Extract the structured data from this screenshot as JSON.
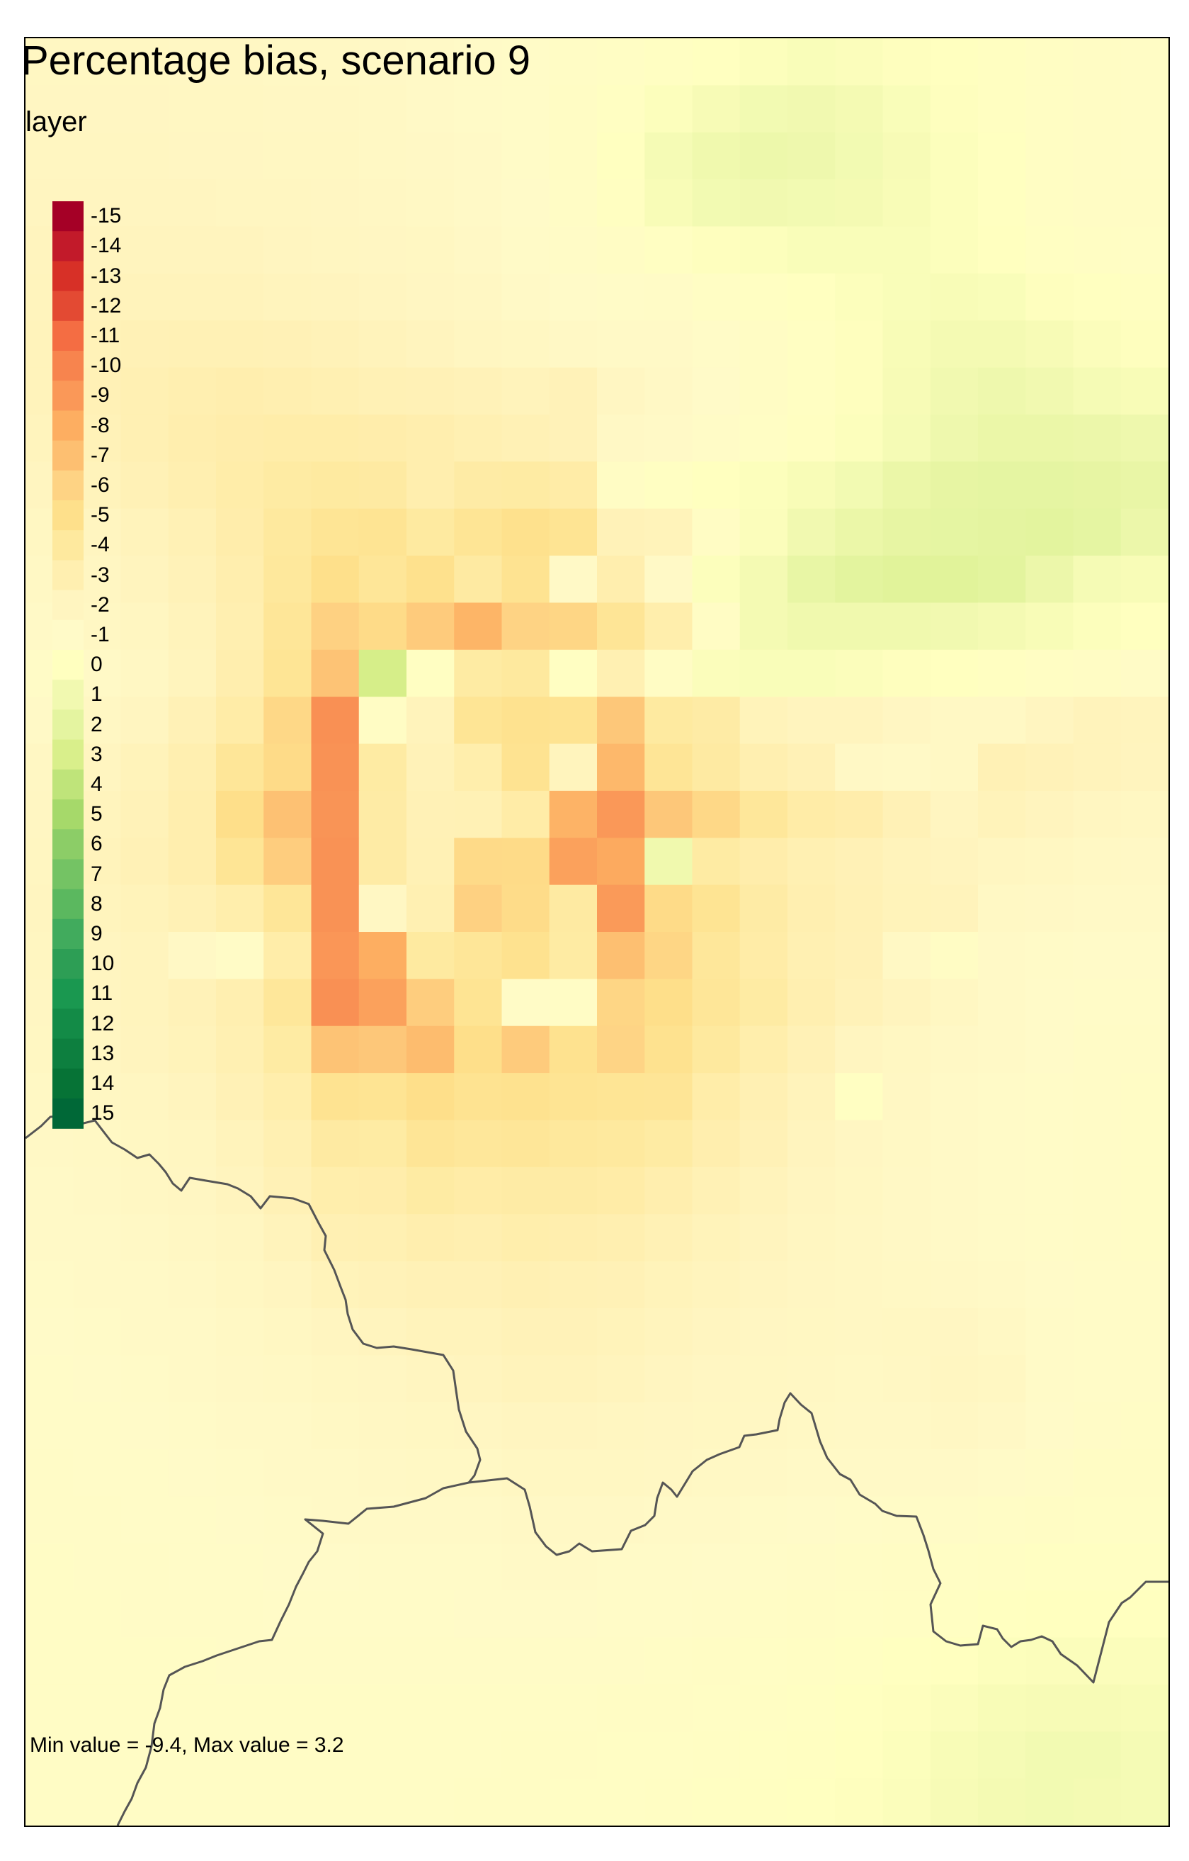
{
  "title": "Percentage bias, scenario 9",
  "legend": {
    "title": "layer",
    "labels": [
      "-15",
      "-14",
      "-13",
      "-12",
      "-11",
      "-10",
      "-9",
      "-8",
      "-7",
      "-6",
      "-5",
      "-4",
      "-3",
      "-2",
      "-1",
      "0",
      "1",
      "2",
      "3",
      "4",
      "5",
      "6",
      "7",
      "8",
      "9",
      "10",
      "11",
      "12",
      "13",
      "14",
      "15"
    ],
    "colors": [
      "#a50026",
      "#c21a2a",
      "#d73027",
      "#e34a33",
      "#f46d43",
      "#f7844e",
      "#fa9858",
      "#fdae61",
      "#fdbf71",
      "#fed384",
      "#fee08b",
      "#fee99e",
      "#ffefb0",
      "#fff5c0",
      "#fffac8",
      "#ffffbf",
      "#f1f9b0",
      "#e4f4a0",
      "#d9ef8b",
      "#bfe47a",
      "#a6d96a",
      "#8ccd67",
      "#74c364",
      "#5bb85f",
      "#41ab5d",
      "#2d9e55",
      "#1a9850",
      "#138b47",
      "#0d7f3f",
      "#067336",
      "#006837"
    ]
  },
  "caption": "Min value = -9.4, Max value = 3.2",
  "raster": {
    "cols": 24,
    "rows": 38,
    "min": -9.4,
    "max": 3.2,
    "values": [
      [
        -1.7,
        -1.7,
        -1.7,
        -1.6,
        -1.6,
        -1.5,
        -1.5,
        -1.4,
        -1.3,
        -1.1,
        -0.9,
        -0.7,
        -0.5,
        -0.3,
        -0.1,
        0.2,
        0.4,
        0.3,
        0.1,
        0.0,
        -0.2,
        -0.4,
        -0.6,
        -0.7
      ],
      [
        -1.8,
        -1.8,
        -1.8,
        -1.7,
        -1.7,
        -1.6,
        -1.6,
        -1.5,
        -1.3,
        -1.1,
        -0.9,
        -0.6,
        -0.3,
        0.2,
        0.6,
        0.9,
        1.0,
        0.8,
        0.4,
        0.1,
        -0.2,
        -0.4,
        -0.6,
        -0.7
      ],
      [
        -1.9,
        -1.9,
        -1.9,
        -1.8,
        -1.8,
        -1.7,
        -1.7,
        -1.5,
        -1.4,
        -1.2,
        -0.9,
        -0.6,
        -0.1,
        0.7,
        1.1,
        1.3,
        1.2,
        0.9,
        0.6,
        0.2,
        -0.1,
        -0.4,
        -0.6,
        -0.7
      ],
      [
        -2.0,
        -2.0,
        -2.0,
        -2.0,
        -1.9,
        -1.9,
        -1.8,
        -1.6,
        -1.5,
        -1.3,
        -1.0,
        -0.7,
        -0.2,
        0.5,
        0.9,
        1.0,
        0.9,
        0.8,
        0.5,
        0.2,
        -0.1,
        -0.4,
        -0.6,
        -0.6
      ],
      [
        -2.1,
        -2.1,
        -2.1,
        -2.1,
        -2.1,
        -2.0,
        -1.9,
        -1.8,
        -1.7,
        -1.4,
        -1.1,
        -0.8,
        -0.6,
        -0.3,
        0.1,
        0.2,
        0.4,
        0.4,
        0.4,
        0.2,
        0.0,
        -0.3,
        -0.4,
        -0.5
      ],
      [
        -2.2,
        -2.3,
        -2.3,
        -2.3,
        -2.3,
        -2.2,
        -2.1,
        -2.0,
        -1.8,
        -1.6,
        -1.3,
        -1.0,
        -0.9,
        -0.8,
        -0.5,
        -0.3,
        -0.1,
        0.2,
        0.4,
        0.5,
        0.4,
        0.1,
        -0.1,
        -0.2
      ],
      [
        -2.3,
        -2.5,
        -2.6,
        -2.7,
        -2.7,
        -2.6,
        -2.5,
        -2.3,
        -2.1,
        -1.9,
        -1.7,
        -1.4,
        -1.3,
        -1.2,
        -0.9,
        -0.6,
        -0.3,
        0.1,
        0.5,
        0.8,
        0.8,
        0.6,
        0.3,
        0.1
      ],
      [
        -2.3,
        -2.6,
        -2.8,
        -3.0,
        -3.1,
        -3.0,
        -2.9,
        -2.7,
        -2.6,
        -2.5,
        -2.3,
        -2.5,
        -1.8,
        -1.4,
        -1.0,
        -0.6,
        -0.3,
        0.1,
        0.6,
        1.0,
        1.2,
        1.0,
        0.7,
        0.5
      ],
      [
        -2.2,
        -2.5,
        -2.8,
        -3.1,
        -3.3,
        -3.4,
        -3.4,
        -3.3,
        -3.1,
        -2.9,
        -2.7,
        -2.5,
        -1.4,
        -1.2,
        -0.8,
        -0.5,
        -0.2,
        0.2,
        0.7,
        1.2,
        1.5,
        1.5,
        1.4,
        1.2
      ],
      [
        -2.0,
        -2.3,
        -2.6,
        -3.0,
        -3.4,
        -3.7,
        -3.9,
        -3.8,
        -3.1,
        -3.6,
        -3.7,
        -3.5,
        -0.6,
        -0.3,
        0.0,
        0.2,
        0.5,
        0.9,
        1.5,
        1.8,
        1.9,
        1.9,
        1.8,
        1.6
      ],
      [
        -1.7,
        -2.0,
        -2.3,
        -2.7,
        -3.3,
        -4.0,
        -4.5,
        -4.6,
        -3.9,
        -4.5,
        -4.9,
        -4.6,
        -2.5,
        -2.4,
        -0.6,
        0.3,
        1.0,
        1.5,
        1.8,
        1.9,
        2.0,
        2.1,
        1.9,
        1.4
      ],
      [
        -1.5,
        -1.8,
        -2.1,
        -2.5,
        -3.1,
        -4.1,
        -5.0,
        -4.3,
        -4.9,
        -3.8,
        -4.7,
        -1.2,
        -3.1,
        -1.3,
        0.2,
        0.8,
        1.7,
        2.1,
        2.3,
        2.3,
        2.1,
        1.4,
        0.7,
        0.5
      ],
      [
        -1.3,
        -1.6,
        -1.9,
        -2.3,
        -3.0,
        -4.3,
        -6.1,
        -5.4,
        -6.4,
        -7.6,
        -6.0,
        -5.8,
        -4.4,
        -3.2,
        -0.6,
        0.8,
        1.1,
        1.1,
        1.1,
        1.0,
        0.8,
        0.5,
        0.2,
        0.0
      ],
      [
        -0.8,
        -1.2,
        -1.6,
        -2.2,
        -3.1,
        -4.5,
        -6.8,
        3.1,
        -0.3,
        -3.7,
        -4.0,
        -0.3,
        -2.9,
        -0.6,
        0.3,
        0.4,
        0.4,
        0.3,
        0.1,
        0.0,
        -0.2,
        -0.4,
        -0.6,
        -0.8
      ],
      [
        -1.2,
        -1.6,
        -2.0,
        -2.6,
        -3.5,
        -5.6,
        -9.4,
        -0.6,
        -2.3,
        -4.5,
        -4.8,
        -4.7,
        -6.6,
        -3.9,
        -3.6,
        -2.4,
        -2.1,
        -2.1,
        -1.8,
        -1.5,
        -1.5,
        -2.0,
        -2.3,
        -2.2
      ],
      [
        -1.6,
        -2.0,
        -2.4,
        -3.0,
        -4.3,
        -5.4,
        -9.3,
        -3.7,
        -2.5,
        -3.2,
        -4.7,
        -2.2,
        -7.4,
        -4.4,
        -3.8,
        -3.0,
        -2.6,
        -1.4,
        -1.2,
        -1.5,
        -2.7,
        -2.5,
        -2.3,
        -2.1
      ],
      [
        -1.8,
        -2.2,
        -2.5,
        -3.1,
        -5.1,
        -6.9,
        -9.2,
        -3.6,
        -2.6,
        -2.7,
        -3.5,
        -7.7,
        -9.0,
        -6.6,
        -5.6,
        -4.2,
        -3.5,
        -3.3,
        -2.6,
        -2.0,
        -2.4,
        -2.1,
        -1.9,
        -1.7
      ],
      [
        -1.9,
        -2.3,
        -2.6,
        -3.1,
        -4.5,
        -6.3,
        -9.3,
        -3.6,
        -2.7,
        -5.5,
        -5.4,
        -8.6,
        -8.2,
        1.1,
        -3.7,
        -3.3,
        -2.9,
        -2.6,
        -2.3,
        -2.1,
        -1.9,
        -1.7,
        -1.5,
        -1.4
      ],
      [
        -2.0,
        -2.2,
        -2.4,
        -2.7,
        -3.2,
        -4.3,
        -9.3,
        -1.6,
        -2.9,
        -6.1,
        -5.3,
        -3.8,
        -8.9,
        -5.4,
        -4.6,
        -3.6,
        -3.0,
        -2.7,
        -2.4,
        -2.3,
        -1.5,
        -1.4,
        -1.3,
        -1.2
      ],
      [
        -1.9,
        -2.0,
        -2.2,
        -1.4,
        -0.8,
        -3.4,
        -9.1,
        -8.0,
        -3.9,
        -4.3,
        -4.8,
        -3.7,
        -7.0,
        -5.8,
        -4.2,
        -3.5,
        -2.9,
        -2.6,
        -1.5,
        -0.6,
        -1.2,
        -1.1,
        -1.0,
        -1.0
      ],
      [
        -1.8,
        -2.0,
        -2.2,
        -2.5,
        -3.0,
        -4.2,
        -9.4,
        -8.6,
        -6.3,
        -4.6,
        -0.8,
        -0.7,
        -5.8,
        -5.1,
        -4.3,
        -3.7,
        -3.0,
        -2.5,
        -2.1,
        -1.7,
        -1.3,
        -1.0,
        -0.9,
        -0.9
      ],
      [
        -1.7,
        -1.9,
        -2.1,
        -2.4,
        -2.9,
        -3.7,
        -6.8,
        -6.6,
        -7.2,
        -5.1,
        -6.4,
        -4.8,
        -5.9,
        -4.8,
        -4.0,
        -3.2,
        -2.6,
        -2.0,
        -1.7,
        -1.4,
        -1.2,
        -1.0,
        -0.8,
        -0.8
      ],
      [
        -1.5,
        -1.7,
        -1.9,
        -2.1,
        -2.6,
        -3.2,
        -4.7,
        -4.6,
        -5.1,
        -4.7,
        -4.8,
        -4.6,
        -4.5,
        -4.4,
        -3.4,
        -2.8,
        -2.3,
        -0.3,
        -1.6,
        -1.3,
        -1.1,
        -0.9,
        -0.8,
        -0.7
      ],
      [
        -1.4,
        -1.5,
        -1.7,
        -1.9,
        -2.3,
        -2.9,
        -3.8,
        -3.7,
        -4.4,
        -4.2,
        -4.3,
        -4.1,
        -4.0,
        -3.7,
        -3.1,
        -2.6,
        -2.1,
        -1.8,
        -1.5,
        -1.3,
        -1.1,
        -0.9,
        -0.8,
        -0.7
      ],
      [
        -1.3,
        -1.4,
        -1.6,
        -1.8,
        -2.1,
        -2.6,
        -3.2,
        -3.3,
        -3.7,
        -3.5,
        -3.6,
        -3.6,
        -3.5,
        -3.1,
        -2.7,
        -2.3,
        -2.0,
        -1.7,
        -1.4,
        -1.2,
        -1.1,
        -0.9,
        -0.8,
        -0.7
      ],
      [
        -1.2,
        -1.3,
        -1.4,
        -1.6,
        -1.9,
        -2.3,
        -2.8,
        -2.9,
        -3.1,
        -3.0,
        -3.2,
        -3.1,
        -3.0,
        -2.7,
        -2.4,
        -2.1,
        -1.9,
        -1.6,
        -1.4,
        -1.2,
        -1.1,
        -0.9,
        -0.8,
        -0.7
      ],
      [
        -1.1,
        -1.2,
        -1.3,
        -1.4,
        -1.7,
        -2.0,
        -2.4,
        -2.5,
        -2.6,
        -2.6,
        -2.8,
        -2.7,
        -2.6,
        -2.4,
        -2.2,
        -2.0,
        -1.8,
        -1.6,
        -1.5,
        -1.4,
        -1.2,
        -1.0,
        -0.9,
        -0.8
      ],
      [
        -1.0,
        -1.1,
        -1.2,
        -1.3,
        -1.5,
        -1.7,
        -2.0,
        -2.1,
        -2.3,
        -2.3,
        -2.5,
        -2.5,
        -2.4,
        -2.2,
        -2.0,
        -1.8,
        -1.7,
        -1.6,
        -1.7,
        -1.8,
        -1.5,
        -1.1,
        -0.9,
        -0.8
      ],
      [
        -0.9,
        -1.0,
        -1.1,
        -1.2,
        -1.4,
        -1.5,
        -1.7,
        -1.8,
        -2.0,
        -2.1,
        -2.3,
        -2.3,
        -2.2,
        -2.0,
        -1.8,
        -1.7,
        -1.6,
        -1.5,
        -1.6,
        -1.9,
        -1.7,
        -1.1,
        -0.9,
        -0.8
      ],
      [
        -0.9,
        -0.9,
        -1.0,
        -1.1,
        -1.2,
        -1.3,
        -1.5,
        -1.6,
        -1.7,
        -1.8,
        -2.0,
        -2.0,
        -1.9,
        -1.8,
        -1.7,
        -1.6,
        -1.5,
        -1.4,
        -1.4,
        -1.6,
        -1.4,
        -1.0,
        -0.8,
        -0.7
      ],
      [
        -0.8,
        -0.9,
        -0.9,
        -1.0,
        -1.1,
        -1.2,
        -1.3,
        -1.4,
        -1.5,
        -1.5,
        -1.7,
        -1.7,
        -1.7,
        -1.6,
        -1.5,
        -1.4,
        -1.3,
        -1.2,
        -1.2,
        -1.2,
        -1.1,
        -0.8,
        -0.6,
        -0.6
      ],
      [
        -0.8,
        -0.8,
        -0.9,
        -0.9,
        -1.0,
        -1.1,
        -1.2,
        -1.2,
        -1.3,
        -1.3,
        -1.4,
        -1.4,
        -1.4,
        -1.3,
        -1.2,
        -1.1,
        -1.0,
        -0.9,
        -0.8,
        -0.8,
        -0.7,
        -0.6,
        -0.5,
        -0.5
      ],
      [
        -0.7,
        -0.8,
        -0.8,
        -0.9,
        -0.9,
        -1.0,
        -1.0,
        -1.1,
        -1.1,
        -1.1,
        -1.2,
        -1.2,
        -1.1,
        -1.1,
        -1.0,
        -0.9,
        -0.8,
        -0.7,
        -0.6,
        -0.5,
        -0.4,
        -0.3,
        -0.3,
        -0.3
      ],
      [
        -0.7,
        -0.7,
        -0.8,
        -0.8,
        -0.8,
        -0.9,
        -0.9,
        -0.9,
        -0.9,
        -1.0,
        -1.0,
        -1.0,
        -0.9,
        -0.9,
        -0.8,
        -0.7,
        -0.6,
        -0.5,
        -0.4,
        -0.3,
        -0.1,
        0.0,
        0.0,
        0.0
      ],
      [
        -0.7,
        -0.7,
        -0.7,
        -0.7,
        -0.8,
        -0.8,
        -0.8,
        -0.8,
        -0.8,
        -0.8,
        -0.8,
        -0.8,
        -0.8,
        -0.7,
        -0.6,
        -0.5,
        -0.4,
        -0.3,
        -0.1,
        0.0,
        0.2,
        0.3,
        0.3,
        0.3
      ],
      [
        -0.7,
        -0.7,
        -0.7,
        -0.7,
        -0.7,
        -0.7,
        -0.7,
        -0.7,
        -0.7,
        -0.7,
        -0.7,
        -0.7,
        -0.6,
        -0.6,
        -0.5,
        -0.4,
        -0.3,
        -0.1,
        0.1,
        0.3,
        0.5,
        0.6,
        0.6,
        0.5
      ],
      [
        -0.7,
        -0.7,
        -0.7,
        -0.7,
        -0.7,
        -0.7,
        -0.7,
        -0.7,
        -0.7,
        -0.7,
        -0.6,
        -0.6,
        -0.5,
        -0.5,
        -0.4,
        -0.3,
        -0.2,
        0.0,
        0.2,
        0.5,
        0.7,
        0.9,
        0.9,
        0.7
      ],
      [
        -0.7,
        -0.7,
        -0.7,
        -0.7,
        -0.7,
        -0.7,
        -0.7,
        -0.7,
        -0.7,
        -0.6,
        -0.6,
        -0.5,
        -0.5,
        -0.4,
        -0.3,
        -0.2,
        -0.1,
        0.1,
        0.3,
        0.6,
        0.8,
        0.9,
        0.8,
        0.7
      ]
    ]
  }
}
